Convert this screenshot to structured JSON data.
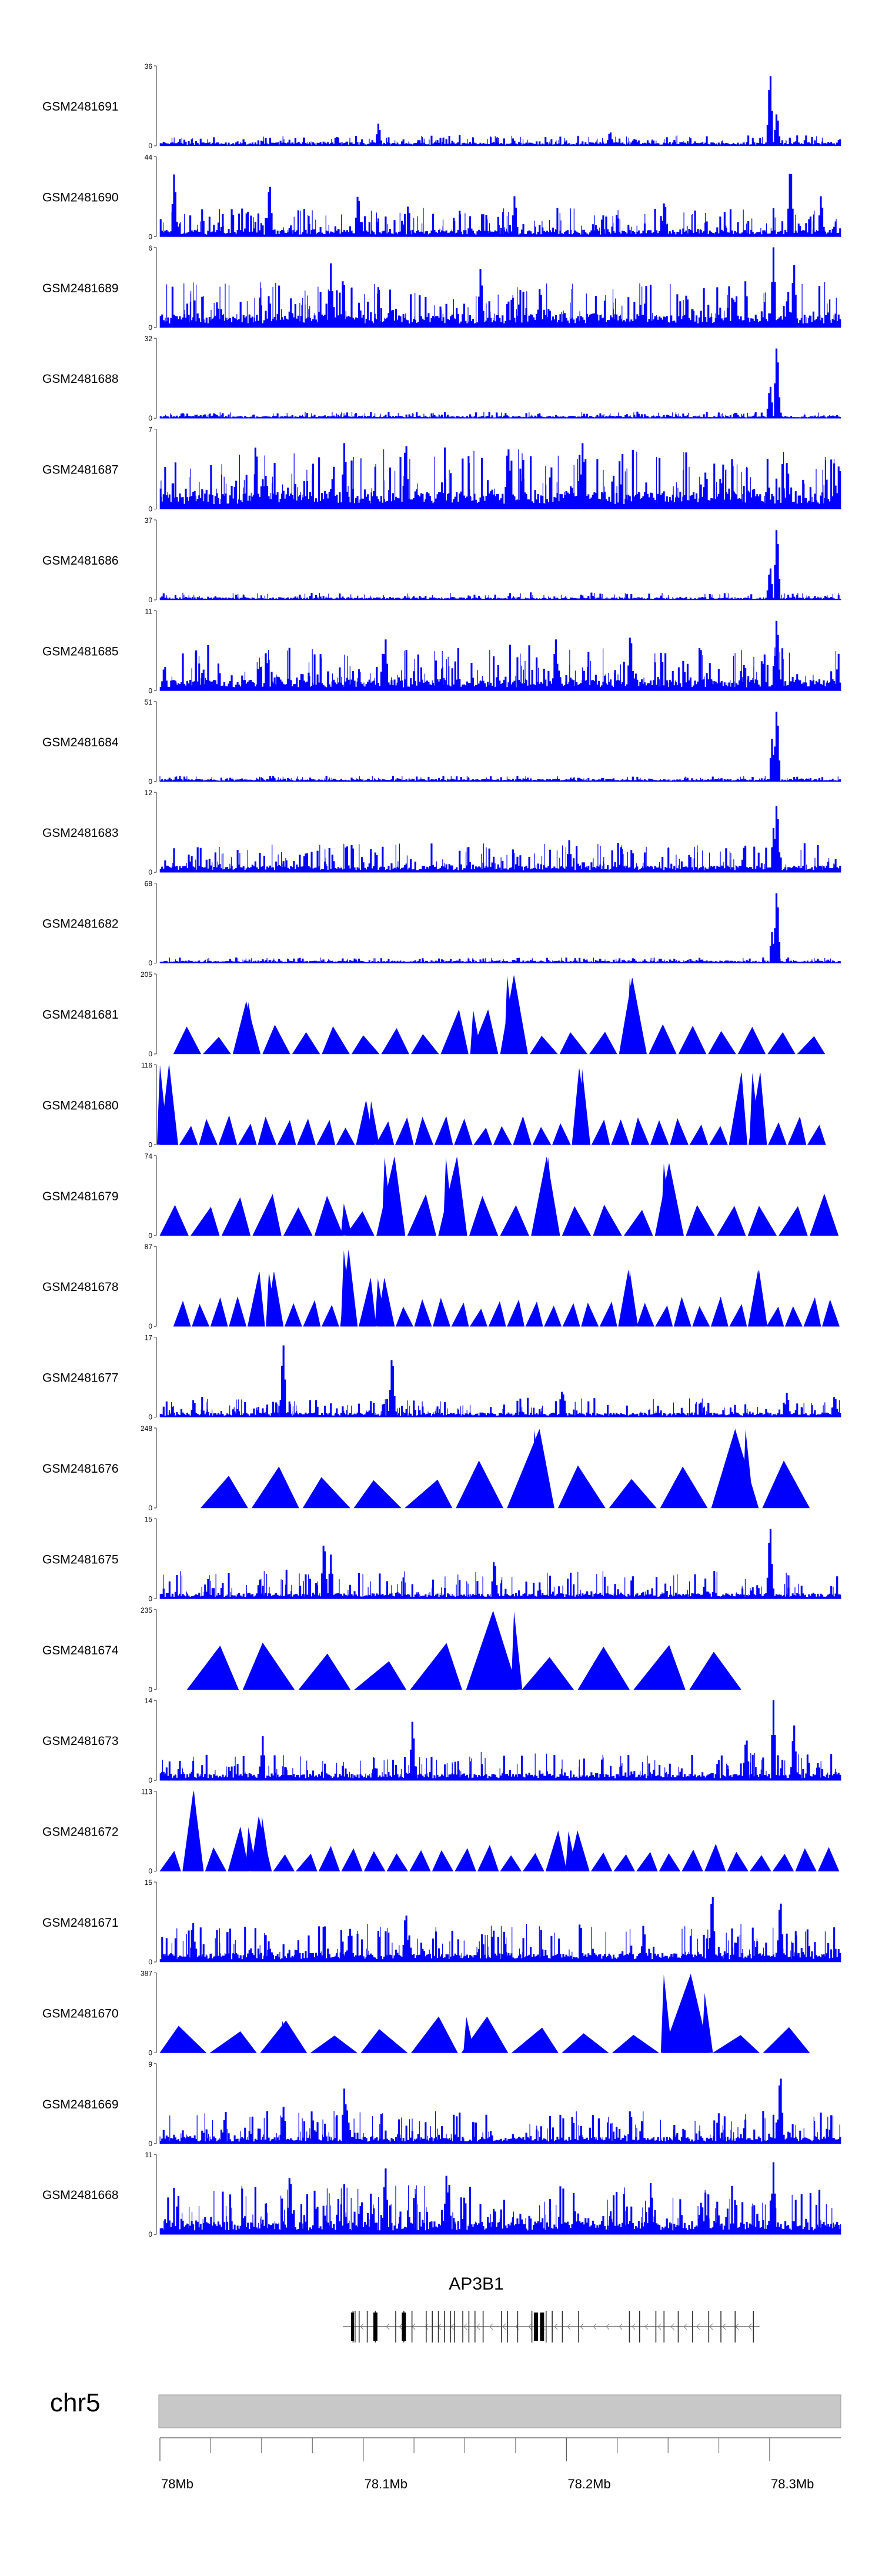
{
  "chart_data": {
    "type": "area",
    "colors": {
      "signal": "#0000ff",
      "axis": "#555555",
      "ideogram": "#c8c8c8"
    },
    "x_range": [
      78.0,
      78.335
    ],
    "x_unit": "Mb",
    "tracks": [
      {
        "name": "GSM2481691",
        "ymax": 36,
        "ymin": 0,
        "style": "dense",
        "baseline": 0.03,
        "noise": 0.1,
        "peaks": [
          [
            0.32,
            0.3
          ],
          [
            0.66,
            0.2
          ],
          [
            0.895,
            1.0
          ],
          [
            0.905,
            0.45
          ]
        ]
      },
      {
        "name": "GSM2481690",
        "ymax": 44,
        "ymin": 0,
        "style": "dense",
        "baseline": 0.06,
        "noise": 0.3,
        "peaks": [
          [
            0.02,
            0.85
          ],
          [
            0.16,
            0.75
          ],
          [
            0.29,
            0.6
          ],
          [
            0.52,
            0.55
          ],
          [
            0.74,
            0.5
          ],
          [
            0.925,
            1.0
          ],
          [
            0.97,
            0.55
          ]
        ]
      },
      {
        "name": "GSM2481689",
        "ymax": 6,
        "ymin": 0,
        "style": "dense",
        "baseline": 0.12,
        "noise": 0.45,
        "peaks": [
          [
            0.25,
            0.8
          ],
          [
            0.47,
            0.8
          ],
          [
            0.9,
            1.0
          ],
          [
            0.93,
            0.85
          ]
        ]
      },
      {
        "name": "GSM2481688",
        "ymax": 32,
        "ymin": 0,
        "style": "dense",
        "baseline": 0.02,
        "noise": 0.06,
        "peaks": [
          [
            0.905,
            1.0
          ],
          [
            0.895,
            0.45
          ]
        ]
      },
      {
        "name": "GSM2481687",
        "ymax": 7,
        "ymin": 0,
        "style": "dense",
        "baseline": 0.15,
        "noise": 0.6,
        "peaks": [
          [
            0.27,
            0.9
          ],
          [
            0.36,
            0.95
          ],
          [
            0.51,
            0.9
          ],
          [
            0.62,
            0.9
          ]
        ]
      },
      {
        "name": "GSM2481686",
        "ymax": 37,
        "ymin": 0,
        "style": "dense",
        "baseline": 0.02,
        "noise": 0.07,
        "peaks": [
          [
            0.905,
            1.0
          ],
          [
            0.895,
            0.45
          ]
        ]
      },
      {
        "name": "GSM2481685",
        "ymax": 11,
        "ymin": 0,
        "style": "dense",
        "baseline": 0.1,
        "noise": 0.45,
        "peaks": [
          [
            0.33,
            0.7
          ],
          [
            0.58,
            0.7
          ],
          [
            0.69,
            0.8
          ],
          [
            0.905,
            1.0
          ]
        ]
      },
      {
        "name": "GSM2481684",
        "ymax": 51,
        "ymin": 0,
        "style": "dense",
        "baseline": 0.02,
        "noise": 0.05,
        "peaks": [
          [
            0.905,
            1.0
          ],
          [
            0.898,
            0.55
          ]
        ]
      },
      {
        "name": "GSM2481683",
        "ymax": 12,
        "ymin": 0,
        "style": "dense",
        "baseline": 0.06,
        "noise": 0.3,
        "peaks": [
          [
            0.905,
            0.95
          ],
          [
            0.9,
            0.55
          ],
          [
            0.6,
            0.4
          ]
        ]
      },
      {
        "name": "GSM2481682",
        "ymax": 68,
        "ymin": 0,
        "style": "dense",
        "baseline": 0.02,
        "noise": 0.05,
        "peaks": [
          [
            0.905,
            1.0
          ],
          [
            0.898,
            0.4
          ]
        ]
      },
      {
        "name": "GSM2481681",
        "ymax": 205,
        "ymin": 0,
        "style": "tri",
        "start": 0.02,
        "end": 0.98,
        "tris": 22,
        "tall": [
          [
            0.13,
            0.65
          ],
          [
            0.51,
            0.98
          ],
          [
            0.69,
            0.95
          ],
          [
            0.46,
            0.55
          ]
        ],
        "low": 0.32
      },
      {
        "name": "GSM2481680",
        "ymax": 116,
        "ymin": 0,
        "style": "tri",
        "start": 0.0,
        "end": 0.98,
        "tris": 34,
        "tall": [
          [
            0.0,
            1.0
          ],
          [
            0.62,
            0.95
          ],
          [
            0.87,
            0.9
          ],
          [
            0.31,
            0.55
          ]
        ],
        "low": 0.32
      },
      {
        "name": "GSM2481679",
        "ymax": 74,
        "ymin": 0,
        "style": "tri",
        "start": 0.0,
        "end": 1.0,
        "tris": 22,
        "tall": [
          [
            0.33,
            0.98
          ],
          [
            0.42,
            0.98
          ],
          [
            0.57,
            0.98
          ],
          [
            0.74,
            0.9
          ],
          [
            0.27,
            0.4
          ]
        ],
        "low": 0.45
      },
      {
        "name": "GSM2481678",
        "ymax": 87,
        "ymin": 0,
        "style": "tri",
        "start": 0.02,
        "end": 1.0,
        "tris": 36,
        "tall": [
          [
            0.16,
            0.68
          ],
          [
            0.27,
            0.95
          ],
          [
            0.69,
            0.7
          ],
          [
            0.88,
            0.7
          ],
          [
            0.32,
            0.6
          ]
        ],
        "low": 0.32
      },
      {
        "name": "GSM2481677",
        "ymax": 17,
        "ymin": 0,
        "style": "dense",
        "baseline": 0.04,
        "noise": 0.2,
        "peaks": [
          [
            0.18,
            0.98
          ],
          [
            0.34,
            0.86
          ],
          [
            0.59,
            0.38
          ],
          [
            0.92,
            0.33
          ],
          [
            0.99,
            0.3
          ]
        ]
      },
      {
        "name": "GSM2481676",
        "ymax": 248,
        "ymin": 0,
        "style": "tri",
        "start": 0.06,
        "end": 0.96,
        "tris": 12,
        "tall": [
          [
            0.55,
            0.98
          ],
          [
            0.86,
            0.98
          ]
        ],
        "low": 0.52
      },
      {
        "name": "GSM2481675",
        "ymax": 15,
        "ymin": 0,
        "style": "dense",
        "baseline": 0.05,
        "noise": 0.3,
        "peaks": [
          [
            0.24,
            0.8
          ],
          [
            0.25,
            0.55
          ],
          [
            0.49,
            0.55
          ],
          [
            0.895,
            1.0
          ]
        ]
      },
      {
        "name": "GSM2481674",
        "ymax": 235,
        "ymin": 0,
        "style": "tri",
        "start": 0.04,
        "end": 0.86,
        "tris": 10,
        "tall": [
          [
            0.52,
            0.98
          ],
          [
            0.5,
            0.7
          ]
        ],
        "low": 0.52
      },
      {
        "name": "GSM2481673",
        "ymax": 14,
        "ymin": 0,
        "style": "dense",
        "baseline": 0.06,
        "noise": 0.3,
        "peaks": [
          [
            0.15,
            0.55
          ],
          [
            0.37,
            0.8
          ],
          [
            0.86,
            0.6
          ],
          [
            0.9,
            1.0
          ],
          [
            0.93,
            0.75
          ]
        ]
      },
      {
        "name": "GSM2481672",
        "ymax": 113,
        "ymin": 0,
        "style": "tri",
        "start": 0.0,
        "end": 1.0,
        "tris": 30,
        "tall": [
          [
            0.05,
            1.0
          ],
          [
            0.15,
            0.68
          ],
          [
            0.13,
            0.55
          ],
          [
            0.6,
            0.5
          ]
        ],
        "low": 0.3
      },
      {
        "name": "GSM2481671",
        "ymax": 15,
        "ymin": 0,
        "style": "dense",
        "baseline": 0.08,
        "noise": 0.4,
        "peaks": [
          [
            0.81,
            0.98
          ],
          [
            0.91,
            0.88
          ],
          [
            0.36,
            0.7
          ]
        ]
      },
      {
        "name": "GSM2481670",
        "ymax": 387,
        "ymin": 0,
        "style": "tri",
        "start": 0.0,
        "end": 0.96,
        "tris": 13,
        "tall": [
          [
            0.74,
            0.98
          ],
          [
            0.8,
            0.75
          ],
          [
            0.45,
            0.45
          ],
          [
            0.18,
            0.4
          ]
        ],
        "low": 0.3
      },
      {
        "name": "GSM2481669",
        "ymax": 9,
        "ymin": 0,
        "style": "dense",
        "baseline": 0.06,
        "noise": 0.35,
        "peaks": [
          [
            0.18,
            0.5
          ],
          [
            0.27,
            0.75
          ],
          [
            0.91,
            0.98
          ]
        ]
      },
      {
        "name": "GSM2481668",
        "ymax": 11,
        "ymin": 0,
        "style": "dense",
        "baseline": 0.12,
        "noise": 0.5,
        "peaks": [
          [
            0.19,
            0.85
          ],
          [
            0.33,
            0.9
          ],
          [
            0.42,
            0.8
          ],
          [
            0.72,
            0.7
          ],
          [
            0.9,
            0.9
          ]
        ]
      }
    ],
    "gene": {
      "name": "AP3B1",
      "start": 78.09,
      "end": 78.295,
      "strand": "-",
      "exons": [
        78.095,
        78.096,
        78.098,
        78.102,
        78.106,
        78.116,
        78.12,
        78.124,
        78.131,
        78.134,
        78.137,
        78.14,
        78.143,
        78.145,
        78.149,
        78.152,
        78.155,
        78.159,
        78.168,
        78.171,
        78.176,
        78.183,
        78.19,
        78.193,
        78.198,
        78.206,
        78.231,
        78.236,
        78.244,
        78.248,
        78.255,
        78.262,
        78.27,
        78.276,
        78.283,
        78.292
      ],
      "wide_exons": [
        [
          78.094,
          78.095
        ],
        [
          78.105,
          78.107
        ],
        [
          78.119,
          78.121
        ],
        [
          78.184,
          78.186
        ],
        [
          78.187,
          78.189
        ]
      ]
    },
    "chromosome": "chr5",
    "x_ticks": [
      "78Mb",
      "78.1Mb",
      "78.2Mb",
      "78.3Mb"
    ],
    "x_tick_values": [
      78.0,
      78.1,
      78.2,
      78.3
    ],
    "minor_tick_values": [
      78.025,
      78.05,
      78.075,
      78.125,
      78.15,
      78.175,
      78.225,
      78.25,
      78.275
    ]
  }
}
